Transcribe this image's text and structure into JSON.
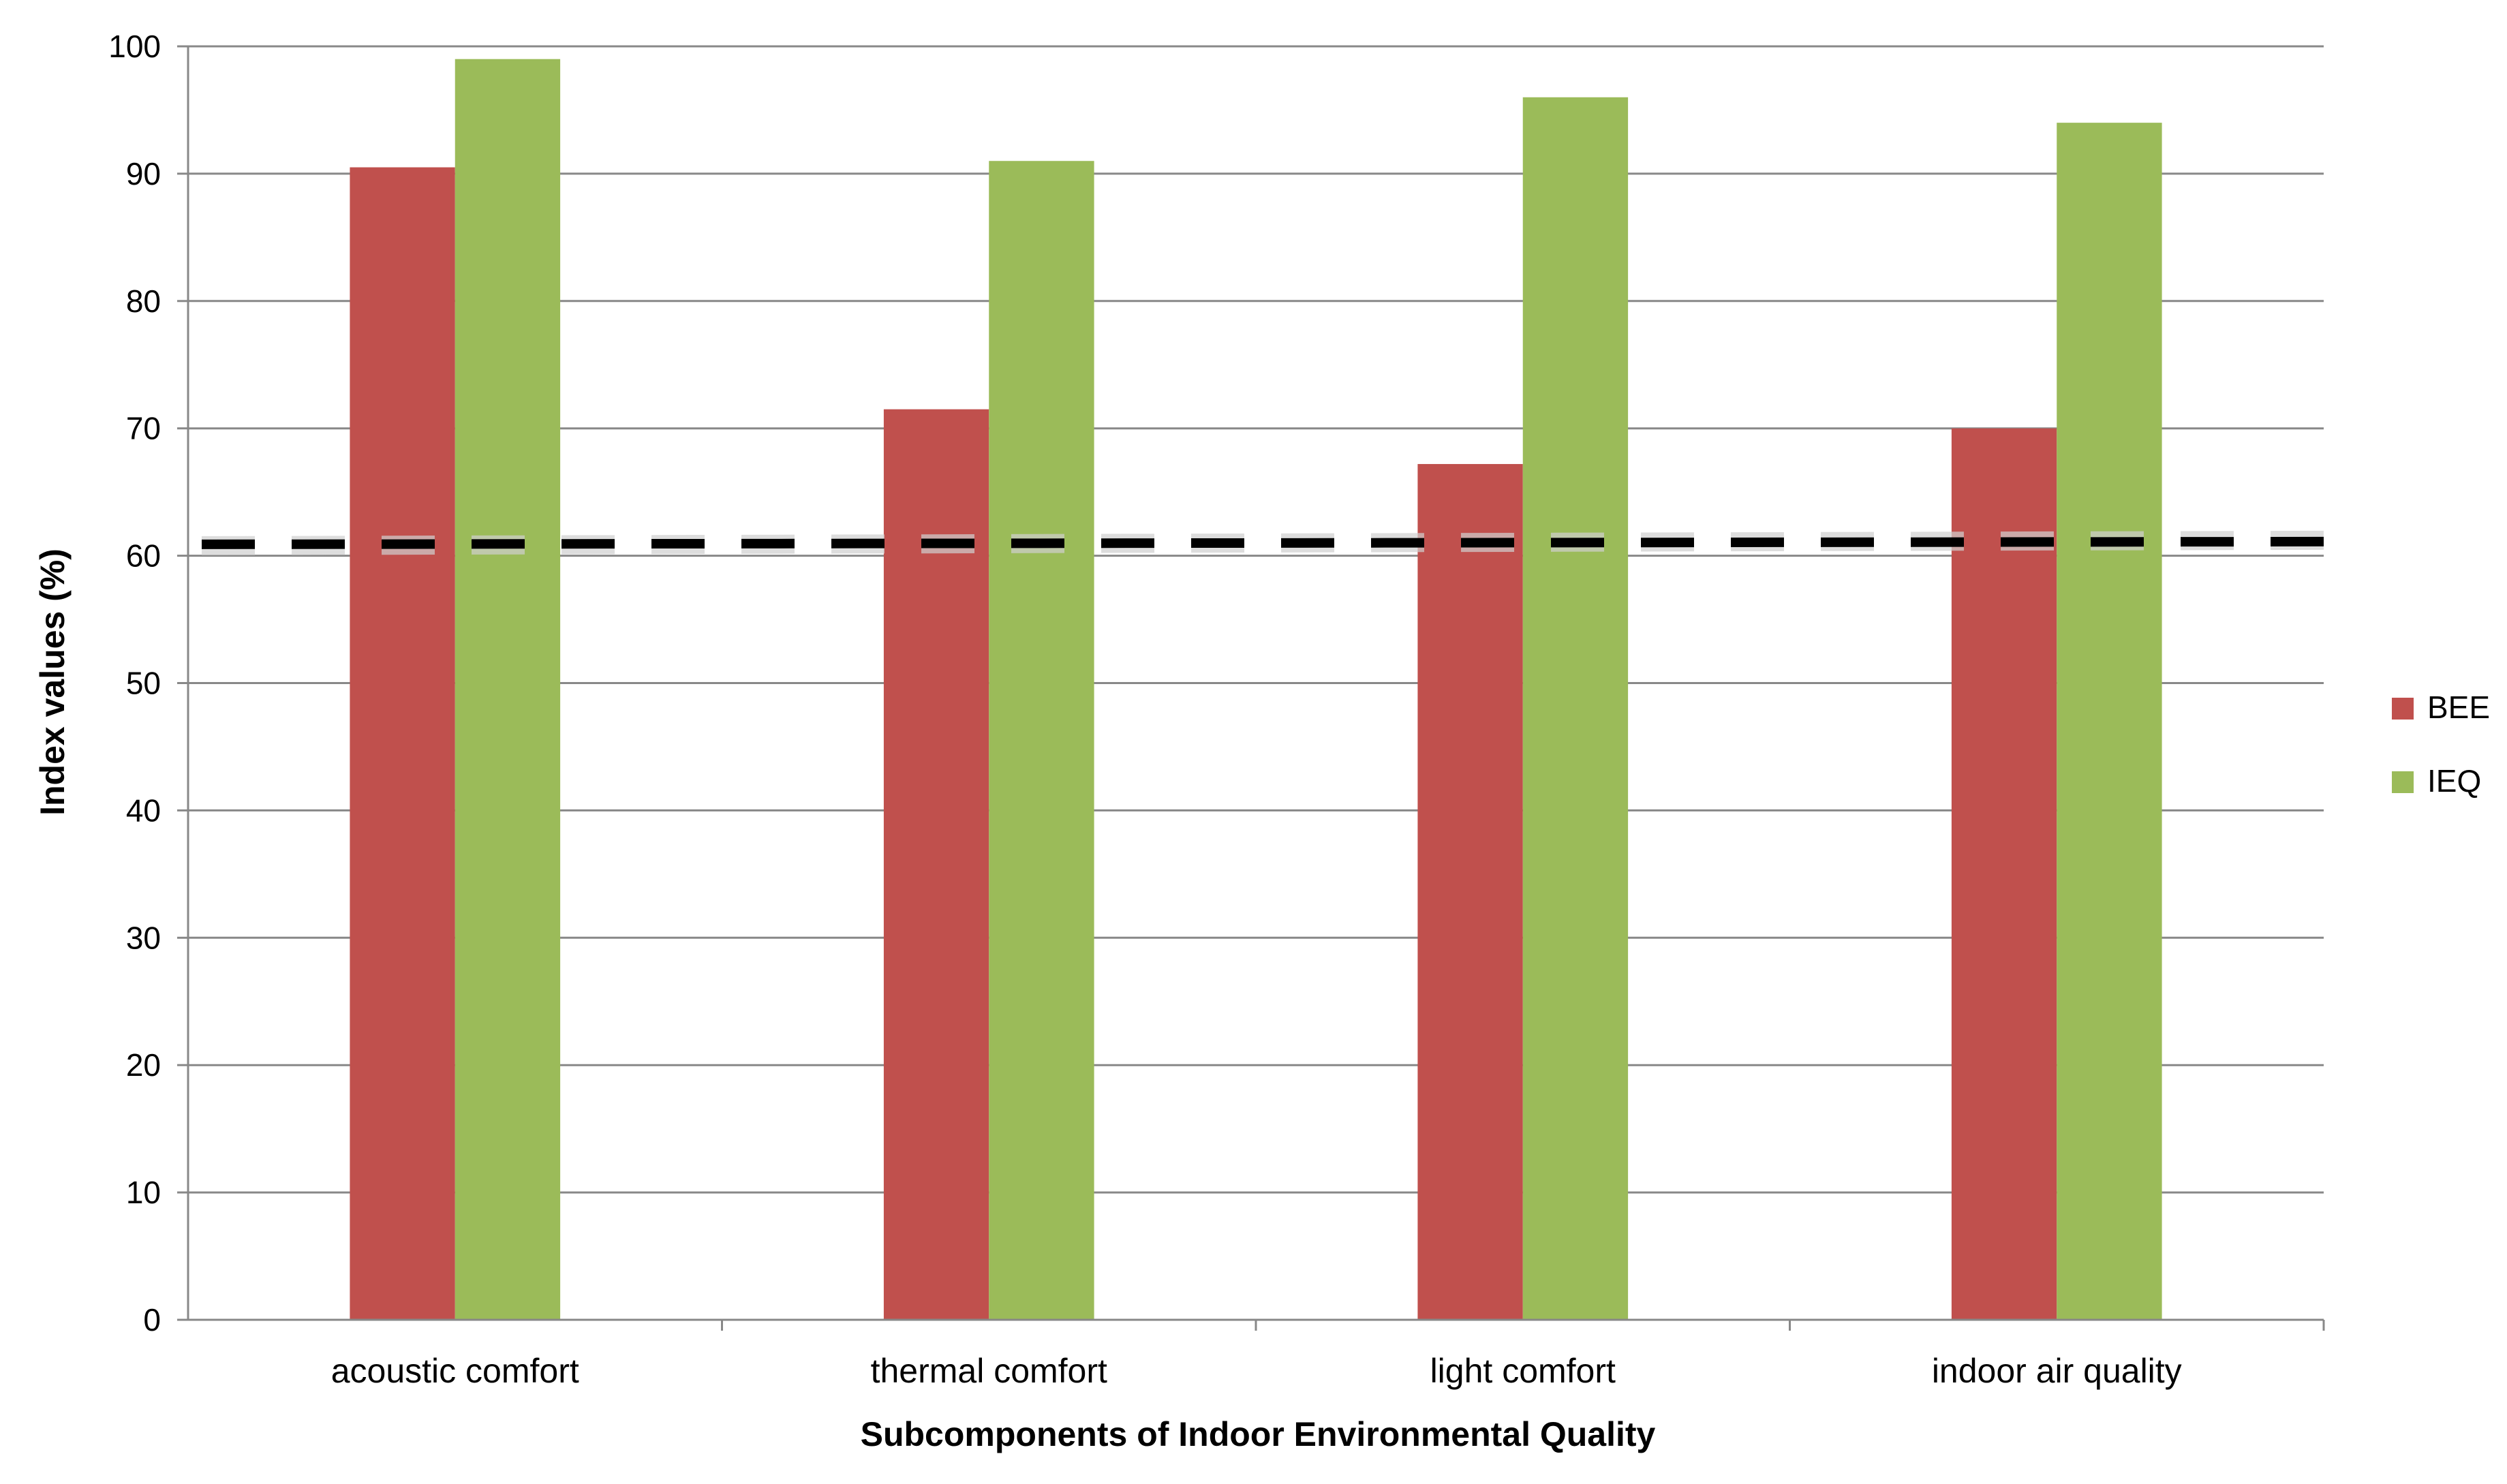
{
  "chart_data": {
    "type": "bar",
    "title": "",
    "xlabel": "Subcomponents of Indoor Environmental Quality",
    "ylabel": "Index values (%)",
    "ylim": [
      0,
      100
    ],
    "yticks": [
      0,
      10,
      20,
      30,
      40,
      50,
      60,
      70,
      80,
      90,
      100
    ],
    "grid": true,
    "legend_position": "right",
    "categories": [
      "acoustic comfort",
      "thermal comfort",
      "light comfort",
      "indoor air quality"
    ],
    "series": [
      {
        "name": "BEE",
        "color": "#c0504d",
        "values": [
          90.5,
          71.5,
          67.2,
          70
        ]
      },
      {
        "name": "IEQ",
        "color": "#9bbb59",
        "values": [
          99,
          91,
          96,
          94
        ]
      }
    ],
    "reference_line": {
      "value": 61,
      "style": "dashed",
      "color": "#000000"
    }
  }
}
